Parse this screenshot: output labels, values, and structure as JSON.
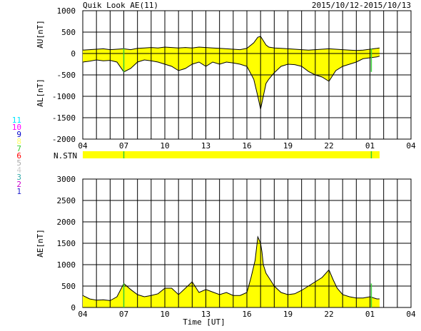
{
  "header": {
    "title": "Quik Look AE(11)",
    "date_range": "2015/10/12-2015/10/13"
  },
  "station_count_legend": [
    {
      "label": "11",
      "color": "#00e5ff"
    },
    {
      "label": "10",
      "color": "#ff00ff"
    },
    {
      "label": "9",
      "color": "#0000cc"
    },
    {
      "label": "8",
      "color": "#ffff66"
    },
    {
      "label": "7",
      "color": "#33cc33"
    },
    {
      "label": "6",
      "color": "#ff0000"
    },
    {
      "label": "5",
      "color": "#aaaaaa"
    },
    {
      "label": "4",
      "color": "#cccccc"
    },
    {
      "label": "3",
      "color": "#33aaaa"
    },
    {
      "label": "2",
      "color": "#cc00cc"
    },
    {
      "label": "1",
      "color": "#2222cc"
    }
  ],
  "station_bar": {
    "label": "N.STN",
    "fill_color": "#ffff00",
    "mark_color": "#33cc33",
    "data_end_hour": 25.7,
    "marks_hour": [
      7.0,
      25.1
    ]
  },
  "x_axis": {
    "tick_labels": [
      "04",
      "07",
      "10",
      "13",
      "16",
      "19",
      "22",
      "01",
      "04"
    ],
    "xlabel": "Time [UT]"
  },
  "chart_data": [
    {
      "type": "area",
      "title": "Quik Look AE(11)",
      "ylabels": [
        "AU[nT]",
        "AL[nT]"
      ],
      "xlim_hours": [
        4,
        28
      ],
      "ylim": [
        -2000,
        1000
      ],
      "yticks": [
        1000,
        500,
        0,
        -500,
        -1000,
        -1500,
        -2000
      ],
      "fill_color": "#ffff00",
      "series": [
        {
          "name": "AU",
          "x": [
            4,
            4.5,
            5,
            5.5,
            6,
            6.5,
            7,
            7.5,
            8,
            8.5,
            9,
            9.5,
            10,
            10.5,
            11,
            11.5,
            12,
            12.5,
            13,
            13.5,
            14,
            14.5,
            15,
            15.5,
            16,
            16.5,
            16.8,
            17,
            17.1,
            17.2,
            17.4,
            17.6,
            18,
            18.5,
            19,
            19.5,
            20,
            20.5,
            21,
            21.5,
            22,
            22.5,
            23,
            23.5,
            24,
            24.5,
            25,
            25.5,
            25.7
          ],
          "values": [
            80,
            90,
            100,
            110,
            90,
            100,
            110,
            90,
            120,
            130,
            140,
            130,
            150,
            140,
            130,
            140,
            130,
            150,
            140,
            130,
            120,
            110,
            100,
            90,
            120,
            250,
            380,
            400,
            350,
            300,
            200,
            150,
            130,
            120,
            110,
            100,
            90,
            80,
            90,
            100,
            110,
            100,
            90,
            80,
            70,
            80,
            100,
            120,
            130
          ]
        },
        {
          "name": "AL",
          "x": [
            4,
            4.5,
            5,
            5.5,
            6,
            6.5,
            7,
            7.5,
            8,
            8.5,
            9,
            9.5,
            10,
            10.5,
            11,
            11.5,
            12,
            12.5,
            13,
            13.5,
            14,
            14.5,
            15,
            15.5,
            16,
            16.5,
            16.8,
            17,
            17.1,
            17.2,
            17.4,
            17.6,
            18,
            18.5,
            19,
            19.5,
            20,
            20.5,
            21,
            21.5,
            22,
            22.5,
            23,
            23.5,
            24,
            24.5,
            25,
            25.5,
            25.7
          ],
          "values": [
            -200,
            -180,
            -150,
            -170,
            -160,
            -200,
            -430,
            -350,
            -200,
            -150,
            -170,
            -200,
            -250,
            -300,
            -400,
            -350,
            -250,
            -200,
            -300,
            -200,
            -250,
            -200,
            -220,
            -250,
            -300,
            -600,
            -1000,
            -1300,
            -1150,
            -1000,
            -700,
            -600,
            -450,
            -300,
            -250,
            -260,
            -300,
            -420,
            -500,
            -550,
            -650,
            -400,
            -300,
            -250,
            -200,
            -120,
            -100,
            -80,
            -60
          ]
        }
      ]
    },
    {
      "type": "area",
      "ylabel": "AE[nT]",
      "xlim_hours": [
        4,
        28
      ],
      "ylim": [
        0,
        3000
      ],
      "yticks": [
        0,
        500,
        1000,
        1500,
        2000,
        2500,
        3000
      ],
      "fill_color": "#ffff00",
      "series": [
        {
          "name": "AE",
          "x": [
            4,
            4.5,
            5,
            5.5,
            6,
            6.5,
            7,
            7.5,
            8,
            8.5,
            9,
            9.5,
            10,
            10.5,
            11,
            11.5,
            12,
            12.5,
            13,
            13.5,
            14,
            14.5,
            15,
            15.5,
            16,
            16.3,
            16.6,
            16.8,
            17,
            17.1,
            17.2,
            17.4,
            17.6,
            18,
            18.5,
            19,
            19.5,
            20,
            20.5,
            21,
            21.5,
            22,
            22.3,
            22.6,
            23,
            23.5,
            24,
            24.5,
            25,
            25.5,
            25.7
          ],
          "values": [
            280,
            200,
            170,
            180,
            160,
            250,
            560,
            420,
            300,
            250,
            280,
            320,
            450,
            450,
            300,
            450,
            600,
            350,
            420,
            360,
            300,
            350,
            280,
            280,
            350,
            700,
            1100,
            1650,
            1500,
            1300,
            1000,
            800,
            700,
            500,
            350,
            300,
            320,
            400,
            500,
            600,
            700,
            880,
            650,
            450,
            300,
            250,
            220,
            220,
            250,
            200,
            200
          ]
        }
      ]
    }
  ]
}
